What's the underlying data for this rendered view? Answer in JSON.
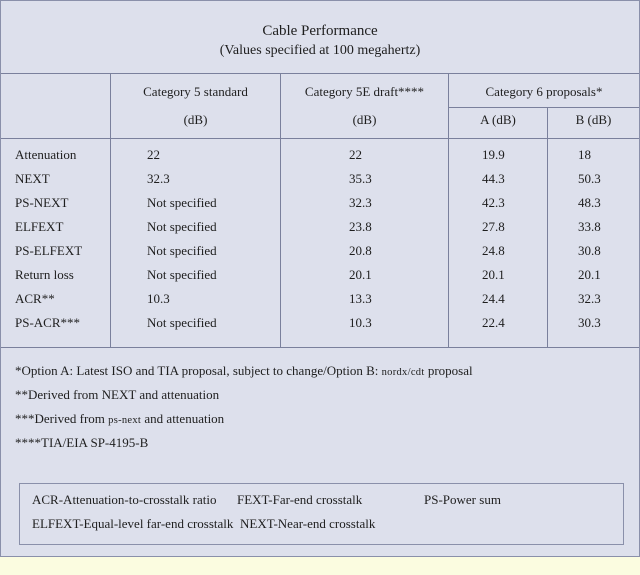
{
  "title": "Cable Performance",
  "subtitle": "(Values specified at 100 megahertz)",
  "columns": {
    "cat5": "Category 5 standard",
    "cat5e": "Category 5E draft****",
    "cat6": "Category 6 proposals*",
    "db": "(dB)",
    "a_db": "A (dB)",
    "b_db": "B (dB)"
  },
  "rows": [
    {
      "name": "Attenuation",
      "cat5": "22",
      "cat5e": "22",
      "a": "19.9",
      "b": "18"
    },
    {
      "name": "NEXT",
      "cat5": "32.3",
      "cat5e": "35.3",
      "a": "44.3",
      "b": "50.3"
    },
    {
      "name": "PS-NEXT",
      "cat5": "Not specified",
      "cat5e": "32.3",
      "a": "42.3",
      "b": "48.3"
    },
    {
      "name": "ELFEXT",
      "cat5": "Not specified",
      "cat5e": "23.8",
      "a": "27.8",
      "b": "33.8"
    },
    {
      "name": "PS-ELFEXT",
      "cat5": "Not specified",
      "cat5e": "20.8",
      "a": "24.8",
      "b": "30.8"
    },
    {
      "name": "Return loss",
      "cat5": "Not specified",
      "cat5e": "20.1",
      "a": "20.1",
      "b": "20.1"
    },
    {
      "name": "ACR**",
      "cat5": "10.3",
      "cat5e": "13.3",
      "a": "24.4",
      "b": "32.3"
    },
    {
      "name": "PS-ACR***",
      "cat5": "Not specified",
      "cat5e": "10.3",
      "a": "22.4",
      "b": "30.3"
    }
  ],
  "footnotes": {
    "f1_pre": "*Option A: Latest ISO and TIA proposal, subject to change/Option B: ",
    "f1_sc": "nordx/cdt",
    "f1_post": " proposal",
    "f2": "**Derived from NEXT and attenuation",
    "f3_pre": "***Derived from ",
    "f3_sc": "ps-next",
    "f3_post": " and attenuation",
    "f4": "****TIA/EIA SP-4195-B"
  },
  "legend": {
    "acr": "ACR-Attenuation-to-crosstalk ratio",
    "fext": "FEXT-Far-end crosstalk",
    "ps": "PS-Power sum",
    "elfext": "ELFEXT-Equal-level far-end crosstalk",
    "next": "NEXT-Near-end crosstalk"
  },
  "colors": {
    "page_background": "#fbfce0",
    "card_background": "#dde0ec",
    "rule": "#7a809c"
  }
}
